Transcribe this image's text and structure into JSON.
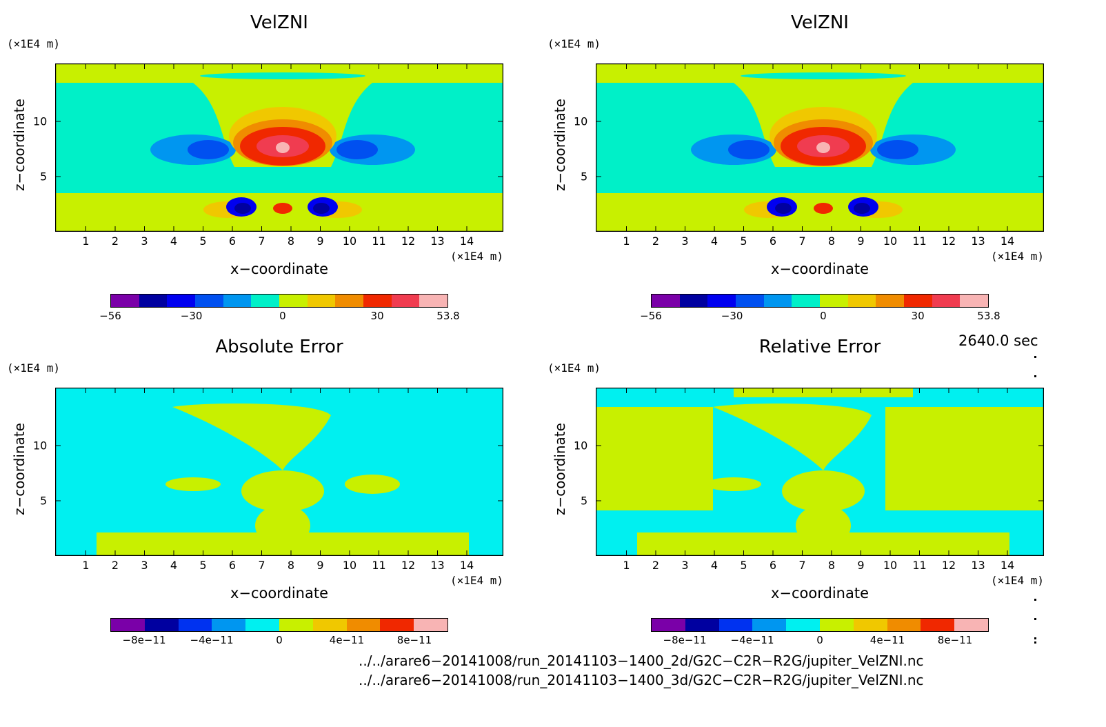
{
  "colors": {
    "velocity_levels": [
      "#7a00a8",
      "#0000a0",
      "#0000f0",
      "#0050f0",
      "#0096f0",
      "#00f0c8",
      "#c8f000",
      "#f0c800",
      "#f08c00",
      "#f02800",
      "#f03c50",
      "#f8b4b4"
    ],
    "error_levels": [
      "#7a00a8",
      "#0000a0",
      "#0032f0",
      "#0096f0",
      "#00f0f0",
      "#c8f000",
      "#f0c800",
      "#f08c00",
      "#f02800",
      "#f8b4b4"
    ]
  },
  "axes": {
    "x_unit": "(×1E4 m)",
    "y_unit": "(×1E4 m)",
    "xlabel": "x−coordinate",
    "ylabel": "z−coordinate",
    "xticks": [
      "1",
      "2",
      "3",
      "4",
      "5",
      "6",
      "7",
      "8",
      "9",
      "10",
      "11",
      "12",
      "13",
      "14"
    ],
    "yticks": [
      "5",
      "10"
    ]
  },
  "panels": [
    {
      "title": "VelZNI",
      "kind": "velocity",
      "colorbar_labels": [
        "−56",
        "−30",
        "0",
        "30",
        "53.8"
      ]
    },
    {
      "title": "VelZNI",
      "kind": "velocity",
      "colorbar_labels": [
        "−56",
        "−30",
        "0",
        "30",
        "53.8"
      ]
    },
    {
      "title": "Absolute Error",
      "kind": "abs_error",
      "colorbar_labels": [
        "−8e−11",
        "−4e−11",
        "0",
        "4e−11",
        "8e−11"
      ]
    },
    {
      "title": "Relative Error",
      "kind": "rel_error",
      "colorbar_labels": [
        "−8e−11",
        "−4e−11",
        "0",
        "4e−11",
        "8e−11"
      ]
    }
  ],
  "footer": {
    "timestamp": "2640.0 sec",
    "file_2d": "../../arare6−20141008/run_20141103−1400_2d/G2C−C2R−R2G/jupiter_VelZNI.nc",
    "file_3d": "../../arare6−20141008/run_20141103−1400_3d/G2C−C2R−R2G/jupiter_VelZNI.nc"
  },
  "chart_data": [
    {
      "type": "heatmap",
      "title": "VelZNI",
      "xlabel": "x−coordinate",
      "ylabel": "z−coordinate",
      "xlim": [
        0,
        15
      ],
      "ylim": [
        0,
        15
      ],
      "color_range": [
        -56,
        53.8
      ]
    },
    {
      "type": "heatmap",
      "title": "VelZNI",
      "xlabel": "x−coordinate",
      "ylabel": "z−coordinate",
      "xlim": [
        0,
        15
      ],
      "ylim": [
        0,
        15
      ],
      "color_range": [
        -56,
        53.8
      ]
    },
    {
      "type": "heatmap",
      "title": "Absolute Error",
      "xlabel": "x−coordinate",
      "ylabel": "z−coordinate",
      "xlim": [
        0,
        15
      ],
      "ylim": [
        0,
        15
      ],
      "color_range": [
        -1e-10,
        1e-10
      ]
    },
    {
      "type": "heatmap",
      "title": "Relative Error",
      "xlabel": "x−coordinate",
      "ylabel": "z−coordinate",
      "xlim": [
        0,
        15
      ],
      "ylim": [
        0,
        15
      ],
      "color_range": [
        -1e-10,
        1e-10
      ]
    }
  ]
}
